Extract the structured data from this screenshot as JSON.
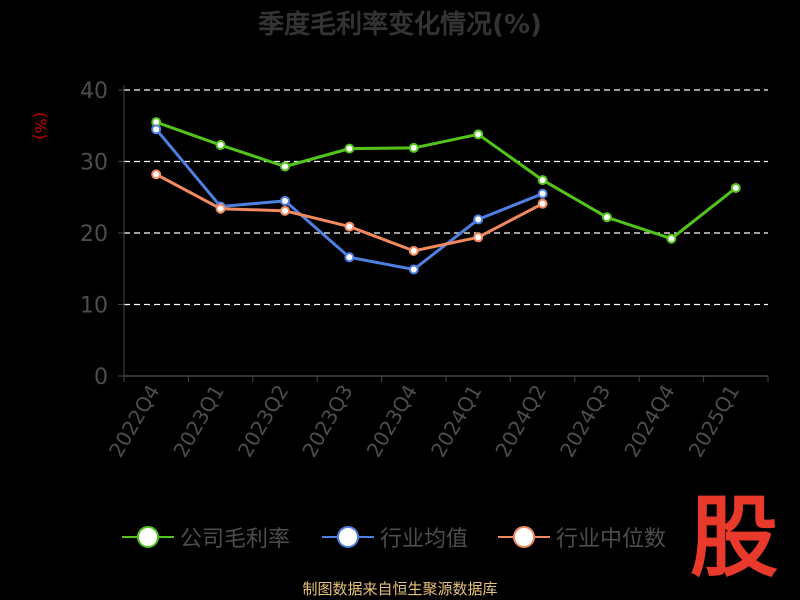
{
  "chart_data": {
    "type": "line",
    "title": "季度毛利率变化情况(%)",
    "unit_label": "(%)",
    "categories": [
      "2022Q4",
      "2023Q1",
      "2023Q2",
      "2023Q3",
      "2023Q4",
      "2024Q1",
      "2024Q2",
      "2024Q3",
      "2024Q4",
      "2025Q1"
    ],
    "ylim": [
      0,
      40
    ],
    "yticks": [
      0,
      10,
      20,
      30,
      40
    ],
    "grid": true,
    "legend_position": "bottom",
    "series": [
      {
        "name": "公司毛利率",
        "color": "#52c41a",
        "values": [
          35.5,
          32.3,
          29.3,
          31.8,
          31.9,
          33.8,
          27.4,
          22.2,
          19.2,
          26.3
        ]
      },
      {
        "name": "行业均值",
        "color": "#4f7fe0",
        "values": [
          34.5,
          23.7,
          24.5,
          16.6,
          14.9,
          21.9,
          25.5,
          null,
          null,
          null
        ]
      },
      {
        "name": "行业中位数",
        "color": "#f2895f",
        "values": [
          28.2,
          23.4,
          23.1,
          20.9,
          17.5,
          19.4,
          24.1,
          null,
          null,
          null
        ]
      }
    ]
  },
  "footer": {
    "source": "制图数据来自恒生聚源数据库",
    "logo": "股"
  }
}
